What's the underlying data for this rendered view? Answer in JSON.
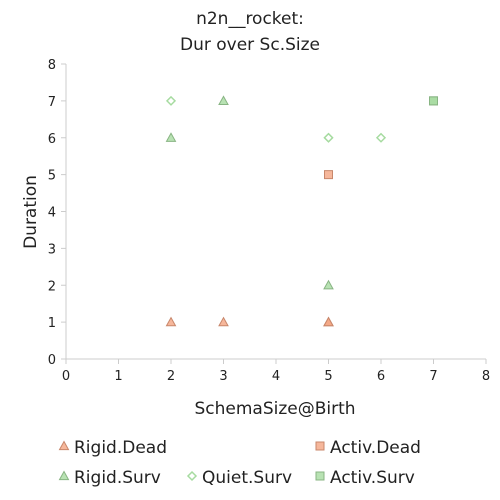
{
  "chart_data": {
    "type": "scatter",
    "title_lines": [
      "n2n__rocket:",
      "Dur over Sc.Size"
    ],
    "xlabel": "SchemaSize@Birth",
    "ylabel": "Duration",
    "xlim": [
      0,
      8
    ],
    "ylim": [
      0,
      8
    ],
    "x_ticks": [
      "0",
      "1",
      "2",
      "3",
      "4",
      "5",
      "6",
      "7",
      "8"
    ],
    "y_ticks": [
      "0",
      "1",
      "2",
      "3",
      "4",
      "5",
      "6",
      "7",
      "8"
    ],
    "grid": false,
    "legend_position": "bottom",
    "series": [
      {
        "name": "Rigid.Dead",
        "marker": "triangle",
        "color": "#f4a582",
        "points": [
          [
            2,
            1
          ],
          [
            3,
            1
          ],
          [
            5,
            1
          ],
          [
            5,
            1
          ]
        ]
      },
      {
        "name": "Activ.Dead",
        "marker": "square",
        "color": "#f4a582",
        "points": [
          [
            5,
            5
          ]
        ]
      },
      {
        "name": "Rigid.Surv",
        "marker": "triangle",
        "color": "#a6dba0",
        "points": [
          [
            2,
            6
          ],
          [
            3,
            7
          ],
          [
            5,
            2
          ]
        ]
      },
      {
        "name": "Quiet.Surv",
        "marker": "diamond",
        "color": "#a6dba0",
        "points": [
          [
            2,
            7
          ],
          [
            5,
            6
          ],
          [
            5,
            6
          ],
          [
            6,
            6
          ]
        ]
      },
      {
        "name": "Activ.Surv",
        "marker": "square",
        "color": "#a6dba0",
        "points": [
          [
            7,
            7
          ],
          [
            7,
            7
          ]
        ]
      }
    ]
  }
}
